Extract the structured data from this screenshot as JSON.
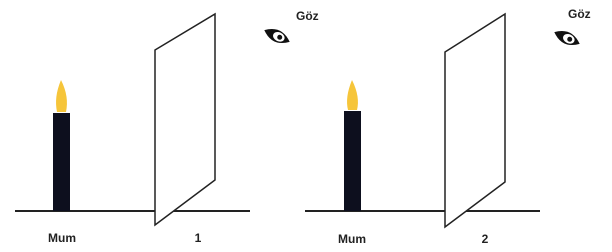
{
  "panels": [
    {
      "candle_label": "Mum",
      "plane_label": "1",
      "eye_label": "Göz"
    },
    {
      "candle_label": "Mum",
      "plane_label": "2",
      "eye_label": "Göz"
    }
  ]
}
